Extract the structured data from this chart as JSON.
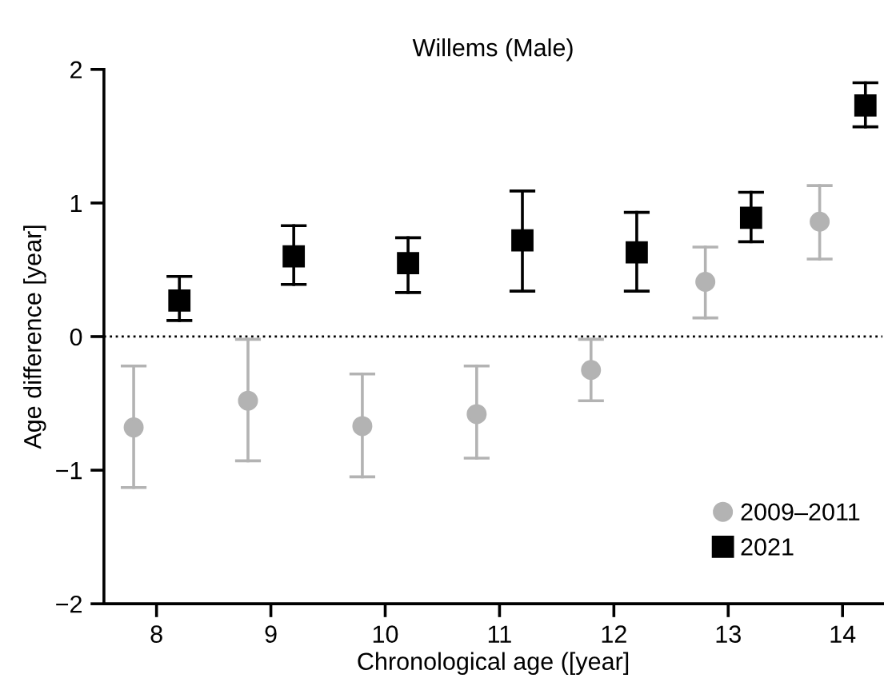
{
  "chart_data": {
    "type": "scatter",
    "title": "Willems (Male)",
    "xlabel": "Chronological age ([year]",
    "ylabel": "Age difference [year]",
    "xlim": [
      7.54,
      14.35
    ],
    "xticks": [
      8,
      9,
      10,
      11,
      12,
      13,
      14
    ],
    "ylim": [
      -2,
      2
    ],
    "yticks": [
      {
        "value": -2,
        "label": "−2"
      },
      {
        "value": -1,
        "label": "−1"
      },
      0,
      1,
      2
    ],
    "grid": false,
    "legend": "bottom right",
    "ref_lines": [
      {
        "axis": "y",
        "value": 0,
        "color": "#000000",
        "line_style": "dotted"
      }
    ],
    "series": [
      {
        "name": "2009–2011",
        "color": "#b3b3b3",
        "marker": "circle",
        "x": [
          7.8,
          8.8,
          9.8,
          10.8,
          11.8,
          12.8,
          13.8
        ],
        "values": [
          -0.68,
          -0.48,
          -0.67,
          -0.58,
          -0.25,
          0.41,
          0.86
        ],
        "errors": [
          [
            -1.13,
            -0.22
          ],
          [
            -0.93,
            -0.02
          ],
          [
            -1.05,
            -0.28
          ],
          [
            -0.91,
            -0.22
          ],
          [
            -0.48,
            -0.02
          ],
          [
            0.14,
            0.67
          ],
          [
            0.58,
            1.13
          ]
        ]
      },
      {
        "name": "2021",
        "color": "#000000",
        "marker": "square",
        "x": [
          8.2,
          9.2,
          10.2,
          11.2,
          12.2,
          13.2,
          14.2
        ],
        "values": [
          0.27,
          0.6,
          0.55,
          0.72,
          0.63,
          0.89,
          1.73
        ],
        "errors": [
          [
            0.12,
            0.45
          ],
          [
            0.39,
            0.83
          ],
          [
            0.33,
            0.74
          ],
          [
            0.34,
            1.09
          ],
          [
            0.34,
            0.93
          ],
          [
            0.71,
            1.08
          ],
          [
            1.57,
            1.9
          ]
        ]
      }
    ]
  }
}
